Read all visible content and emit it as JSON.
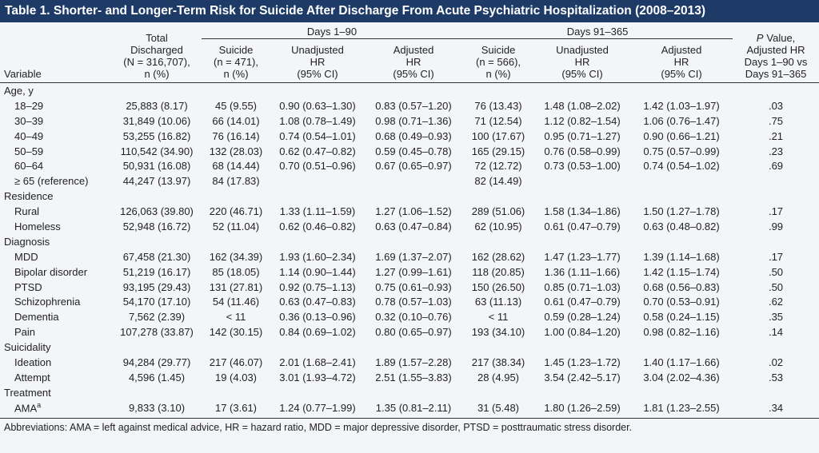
{
  "title": "Table 1. Shorter- and Longer-Term Risk for Suicide After Discharge From Acute Psychiatric Hospitalization (2008–2013)",
  "header": {
    "variable": "Variable",
    "total": [
      "Total",
      "Discharged",
      "(N = 316,707),",
      "n (%)"
    ],
    "group1": "Days 1–90",
    "group2": "Days 91–365",
    "sub": [
      [
        "Suicide",
        "(n = 471),",
        "n (%)"
      ],
      [
        "Unadjusted",
        "HR",
        "(95% CI)"
      ],
      [
        "Adjusted",
        "HR",
        "(95% CI)"
      ],
      [
        "Suicide",
        "(n = 566),",
        "n (%)"
      ],
      [
        "Unadjusted",
        "HR",
        "(95% CI)"
      ],
      [
        "Adjusted",
        "HR",
        "(95% CI)"
      ]
    ],
    "pvalue": {
      "symbol": "P",
      "lines": [
        "Value,",
        "Adjusted HR",
        "Days 1–90 vs",
        "Days 91–365"
      ]
    }
  },
  "sections": [
    {
      "label": "Age, y",
      "rows": [
        {
          "label": "18–29",
          "cells": [
            "25,883 (8.17)",
            "45 (9.55)",
            "0.90 (0.63–1.30)",
            "0.83 (0.57–1.20)",
            "76 (13.43)",
            "1.48 (1.08–2.02)",
            "1.42 (1.03–1.97)",
            ".03"
          ]
        },
        {
          "label": "30–39",
          "cells": [
            "31,849 (10.06)",
            "66 (14.01)",
            "1.08 (0.78–1.49)",
            "0.98 (0.71–1.36)",
            "71 (12.54)",
            "1.12 (0.82–1.54)",
            "1.06 (0.76–1.47)",
            ".75"
          ]
        },
        {
          "label": "40–49",
          "cells": [
            "53,255 (16.82)",
            "76 (16.14)",
            "0.74 (0.54–1.01)",
            "0.68 (0.49–0.93)",
            "100 (17.67)",
            "0.95 (0.71–1.27)",
            "0.90 (0.66–1.21)",
            ".21"
          ]
        },
        {
          "label": "50–59",
          "cells": [
            "110,542 (34.90)",
            "132 (28.03)",
            "0.62 (0.47–0.82)",
            "0.59 (0.45–0.78)",
            "165 (29.15)",
            "0.76 (0.58–0.99)",
            "0.75 (0.57–0.99)",
            ".23"
          ]
        },
        {
          "label": "60–64",
          "cells": [
            "50,931 (16.08)",
            "68 (14.44)",
            "0.70 (0.51–0.96)",
            "0.67 (0.65–0.97)",
            "72 (12.72)",
            "0.73 (0.53–1.00)",
            "0.74 (0.54–1.02)",
            ".69"
          ]
        },
        {
          "label": "≥ 65 (reference)",
          "cells": [
            "44,247 (13.97)",
            "84 (17.83)",
            null,
            null,
            "82 (14.49)",
            null,
            null,
            null
          ]
        }
      ]
    },
    {
      "label": "Residence",
      "rows": [
        {
          "label": "Rural",
          "cells": [
            "126,063 (39.80)",
            "220 (46.71)",
            "1.33 (1.11–1.59)",
            "1.27 (1.06–1.52)",
            "289 (51.06)",
            "1.58 (1.34–1.86)",
            "1.50 (1.27–1.78)",
            ".17"
          ]
        },
        {
          "label": "Homeless",
          "cells": [
            "52,948 (16.72)",
            "52 (11.04)",
            "0.62 (0.46–0.82)",
            "0.63 (0.47–0.84)",
            "62 (10.95)",
            "0.61 (0.47–0.79)",
            "0.63 (0.48–0.82)",
            ".99"
          ]
        }
      ]
    },
    {
      "label": "Diagnosis",
      "rows": [
        {
          "label": "MDD",
          "cells": [
            "67,458 (21.30)",
            "162 (34.39)",
            "1.93 (1.60–2.34)",
            "1.69 (1.37–2.07)",
            "162 (28.62)",
            "1.47 (1.23–1.77)",
            "1.39 (1.14–1.68)",
            ".17"
          ]
        },
        {
          "label": "Bipolar disorder",
          "cells": [
            "51,219 (16.17)",
            "85 (18.05)",
            "1.14 (0.90–1.44)",
            "1.27 (0.99–1.61)",
            "118 (20.85)",
            "1.36 (1.11–1.66)",
            "1.42 (1.15–1.74)",
            ".50"
          ]
        },
        {
          "label": "PTSD",
          "cells": [
            "93,195 (29.43)",
            "131 (27.81)",
            "0.92 (0.75–1.13)",
            "0.75 (0.61–0.93)",
            "150 (26.50)",
            "0.85 (0.71–1.03)",
            "0.68 (0.56–0.83)",
            ".50"
          ]
        },
        {
          "label": "Schizophrenia",
          "cells": [
            "54,170 (17.10)",
            "54 (11.46)",
            "0.63 (0.47–0.83)",
            "0.78 (0.57–1.03)",
            "63 (11.13)",
            "0.61 (0.47–0.79)",
            "0.70 (0.53–0.91)",
            ".62"
          ]
        },
        {
          "label": "Dementia",
          "cells": [
            "7,562 (2.39)",
            "< 11",
            "0.36 (0.13–0.96)",
            "0.32 (0.10–0.76)",
            "< 11",
            "0.59 (0.28–1.24)",
            "0.58 (0.24–1.15)",
            ".35"
          ]
        },
        {
          "label": "Pain",
          "cells": [
            "107,278 (33.87)",
            "142 (30.15)",
            "0.84 (0.69–1.02)",
            "0.80 (0.65–0.97)",
            "193 (34.10)",
            "1.00 (0.84–1.20)",
            "0.98 (0.82–1.16)",
            ".14"
          ]
        }
      ]
    },
    {
      "label": "Suicidality",
      "rows": [
        {
          "label": "Ideation",
          "cells": [
            "94,284 (29.77)",
            "217 (46.07)",
            "2.01 (1.68–2.41)",
            "1.89 (1.57–2.28)",
            "217 (38.34)",
            "1.45 (1.23–1.72)",
            "1.40 (1.17–1.66)",
            ".02"
          ]
        },
        {
          "label": "Attempt",
          "cells": [
            "4,596 (1.45)",
            "19 (4.03)",
            "3.01 (1.93–4.72)",
            "2.51 (1.55–3.83)",
            "28 (4.95)",
            "3.54 (2.42–5.17)",
            "3.04 (2.02–4.36)",
            ".53"
          ]
        }
      ]
    },
    {
      "label": "Treatment",
      "rows": [
        {
          "label": "AMA",
          "sup": "a",
          "cells": [
            "9,833 (3.10)",
            "17 (3.61)",
            "1.24 (0.77–1.99)",
            "1.35 (0.81–2.11)",
            "31 (5.48)",
            "1.80 (1.26–2.59)",
            "1.81 (1.23–2.55)",
            ".34"
          ]
        }
      ]
    }
  ],
  "footnote": "Abbreviations: AMA = left against medical advice, HR = hazard ratio, MDD = major depressive disorder, PTSD = posttraumatic stress disorder."
}
